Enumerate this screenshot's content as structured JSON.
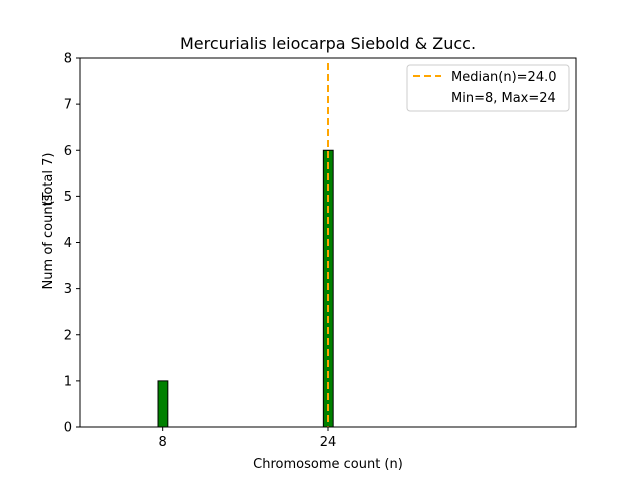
{
  "chart_data": {
    "type": "bar",
    "title": "Mercurialis leiocarpa Siebold & Zucc.",
    "xlabel": "Chromosome count (n)",
    "ylabel": "Num of counts",
    "ylabel_total": "(Total 7)",
    "x": [
      8,
      24
    ],
    "values": [
      1,
      6
    ],
    "xlim": [
      0,
      48
    ],
    "ylim": [
      0,
      8
    ],
    "xticks": [
      8,
      24
    ],
    "yticks": [
      0,
      1,
      2,
      3,
      4,
      5,
      6,
      7,
      8
    ],
    "bar_color": "#008000",
    "bar_edge_color": "#000000",
    "median": 24.0,
    "median_color": "#ffa500",
    "legend": {
      "position": "top-right",
      "entries": [
        "Median(n)=24.0",
        "Min=8, Max=24"
      ]
    },
    "grid": false
  }
}
